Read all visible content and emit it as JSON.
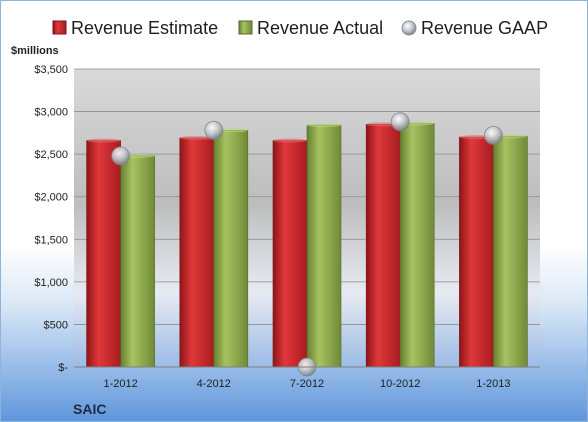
{
  "chart_data": {
    "type": "bar",
    "categories": [
      "1-2012",
      "4-2012",
      "7-2012",
      "10-2012",
      "1-2013"
    ],
    "series": [
      {
        "name": "Revenue Estimate",
        "kind": "bar",
        "color": "#c0262a",
        "values": [
          2660,
          2690,
          2660,
          2850,
          2700
        ]
      },
      {
        "name": "Revenue Actual",
        "kind": "bar",
        "color": "#8aa34a",
        "values": [
          2480,
          2780,
          2840,
          2860,
          2710
        ]
      },
      {
        "name": "Revenue GAAP",
        "kind": "marker",
        "color": "#b8bcc4",
        "values": [
          2480,
          2780,
          0,
          2880,
          2720
        ]
      }
    ],
    "ylim": [
      0,
      3500
    ],
    "yticks": [
      0,
      500,
      1000,
      1500,
      2000,
      2500,
      3000,
      3500
    ],
    "ytick_labels": [
      "$-",
      "$500",
      "$1,000",
      "$1,500",
      "$2,000",
      "$2,500",
      "$3,000",
      "$3,500"
    ],
    "ylabel": "$millions",
    "legend_position": "top",
    "grid": true
  },
  "company": "SAIC"
}
